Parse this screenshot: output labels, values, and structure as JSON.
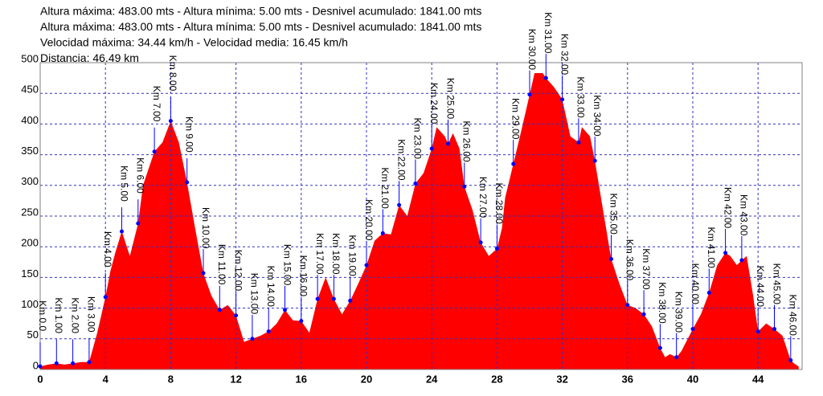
{
  "chart_data": {
    "type": "area",
    "header": [
      "Altura máxima: 483.00 mts - Altura mínima: 5.00 mts - Desnivel acumulado: 1841.00 mts",
      "Altura máxima: 483.00 mts - Altura mínima: 5.00 mts - Desnivel acumulado: 1841.00 mts",
      "Velocidad máxima: 34.44 km/h - Velocidad media: 16.45 km/h",
      "Distancia: 46.49 km"
    ],
    "color": "#ff0000",
    "marker_color": "#0000ff",
    "grid": true,
    "xlim": [
      0,
      46.7
    ],
    "ylim": [
      0,
      500
    ],
    "xticks": [
      0,
      4,
      8,
      12,
      16,
      20,
      24,
      28,
      32,
      36,
      40,
      44
    ],
    "yticks": [
      0,
      50,
      100,
      150,
      200,
      250,
      300,
      350,
      400,
      450,
      500
    ],
    "x": [
      0,
      0.5,
      1,
      1.5,
      2,
      2.5,
      3,
      3.5,
      4,
      4.3,
      4.6,
      5,
      5.5,
      6,
      6.3,
      7,
      7.5,
      8,
      8.5,
      9,
      9.5,
      10,
      10.5,
      11,
      11.5,
      12,
      12.5,
      13,
      13.5,
      14,
      14.5,
      15,
      15.5,
      16,
      16.5,
      17,
      17.5,
      18,
      18.5,
      19,
      19.5,
      20,
      20.5,
      21,
      21.5,
      22,
      22.5,
      23,
      23.5,
      24,
      24.3,
      24.8,
      25,
      25.3,
      25.7,
      26,
      26.5,
      27,
      27.5,
      28,
      28.3,
      28.5,
      29,
      29.5,
      30,
      30.3,
      30.8,
      31,
      31.5,
      32,
      32.5,
      33,
      33.2,
      33.7,
      34,
      34.5,
      35,
      35.5,
      36,
      36.5,
      37,
      37.5,
      38,
      38.3,
      38.6,
      39,
      39.3,
      39.5,
      40,
      40.5,
      41,
      41.5,
      42,
      42.3,
      42.7,
      43,
      43.3,
      43.7,
      44,
      44.5,
      45,
      45.5,
      46,
      46.2,
      46.49
    ],
    "values": [
      5,
      8,
      10,
      8,
      10,
      12,
      12,
      60,
      118,
      160,
      190,
      225,
      185,
      238,
      300,
      355,
      370,
      405,
      370,
      305,
      230,
      157,
      120,
      97,
      105,
      88,
      45,
      50,
      55,
      62,
      75,
      97,
      80,
      79,
      60,
      115,
      150,
      115,
      90,
      112,
      140,
      170,
      210,
      222,
      220,
      268,
      250,
      303,
      320,
      360,
      395,
      380,
      368,
      385,
      360,
      298,
      260,
      207,
      185,
      197,
      230,
      280,
      335,
      390,
      448,
      483,
      483,
      475,
      460,
      440,
      380,
      370,
      395,
      380,
      340,
      260,
      180,
      140,
      105,
      100,
      90,
      70,
      35,
      20,
      25,
      20,
      30,
      40,
      66,
      90,
      125,
      170,
      190,
      185,
      170,
      178,
      185,
      120,
      62,
      75,
      66,
      55,
      15,
      10,
      5
    ],
    "markers": {
      "labels": [
        "Km 0.0",
        "Km 1.00",
        "Km 2.00",
        "Km 3.00",
        "Km 4.00",
        "Km 5.00",
        "Km 6.00",
        "Km 7.00",
        "Km 8.00",
        "Km 9.00",
        "Km 10.00",
        "Km 11.00",
        "Km 12.00",
        "Km 13.00",
        "Km 14.00",
        "Km 15.00",
        "Km 16.00",
        "Km 17.00",
        "Km 18.00",
        "Km 19.00",
        "Km 20.00",
        "Km 21.00",
        "Km 22.00",
        "Km 23.00",
        "Km 24.00",
        "Km 25.00",
        "Km 26.00",
        "Km 27.00",
        "Km 28.00",
        "Km 29.00",
        "Km 30.00",
        "Km 31.00",
        "Km 32.00",
        "Km 33.00",
        "Km 34.00",
        "Km 35.00",
        "Km 36.00",
        "Km 37.00",
        "Km 38.00",
        "Km 39.00",
        "Km 40.00",
        "Km 41.00",
        "Km 42.00",
        "Km 43.00",
        "Km 44.00",
        "Km 45.00",
        "Km 46.00"
      ],
      "x": [
        0,
        1,
        2,
        3,
        4,
        5,
        6,
        7,
        8,
        9,
        10,
        11,
        12,
        13,
        14,
        15,
        16,
        17,
        18,
        19,
        20,
        21,
        22,
        23,
        24,
        25,
        26,
        27,
        28,
        29,
        30,
        31,
        32,
        33,
        34,
        35,
        36,
        37,
        38,
        39,
        40,
        41,
        42,
        43,
        44,
        45,
        46
      ],
      "values": [
        5,
        10,
        10,
        12,
        118,
        225,
        238,
        355,
        405,
        305,
        157,
        97,
        88,
        50,
        62,
        97,
        79,
        115,
        115,
        112,
        170,
        222,
        268,
        303,
        360,
        368,
        298,
        207,
        197,
        335,
        448,
        475,
        440,
        370,
        340,
        180,
        105,
        90,
        35,
        20,
        66,
        125,
        190,
        178,
        62,
        66,
        15
      ]
    }
  }
}
